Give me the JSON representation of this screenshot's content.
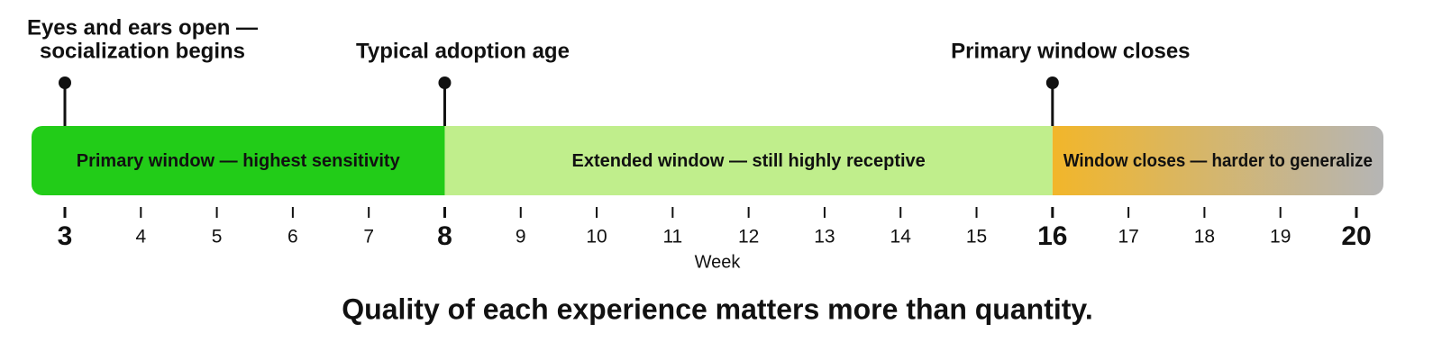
{
  "axis": {
    "label": "Week",
    "range": [
      3,
      20
    ],
    "ticks": [
      3,
      4,
      5,
      6,
      7,
      8,
      9,
      10,
      11,
      12,
      13,
      14,
      15,
      16,
      17,
      18,
      19,
      20
    ]
  },
  "bands": [
    {
      "label": "Primary window — highest sensitivity",
      "start": 3,
      "end": 8,
      "colors": [
        "#22cc18",
        "#22cc18"
      ]
    },
    {
      "label": "Extended window — still highly receptive",
      "start": 8,
      "end": 16,
      "colors": [
        "#c0ee8c",
        "#c0ee8c"
      ]
    },
    {
      "label": "Window closes — harder to generalize",
      "start": 16,
      "end": 20,
      "colors": [
        "#f2b62a",
        "#b5b5b5"
      ]
    }
  ],
  "markers": [
    {
      "label": [
        "Eyes and ears open —",
        "socialization begins"
      ],
      "week": 3
    },
    {
      "label": [
        "Typical adoption age"
      ],
      "week": 8
    },
    {
      "label": [
        "Primary window closes"
      ],
      "week": 16
    }
  ],
  "caption": "Quality of each experience matters more than quantity."
}
